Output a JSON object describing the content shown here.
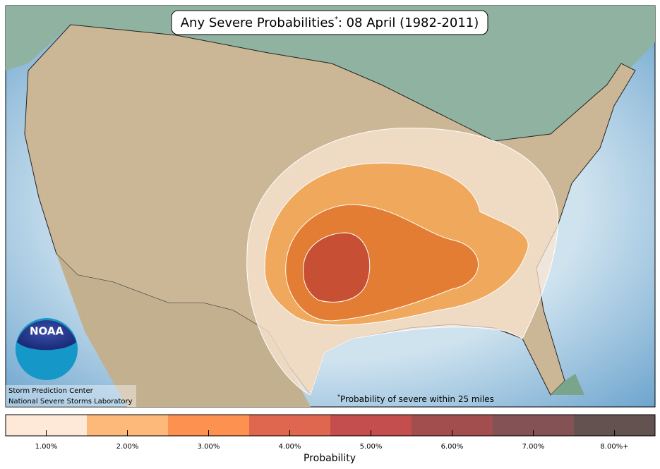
{
  "map": {
    "title": {
      "main": "Any Severe Probabilities",
      "mark": "*",
      "rest": ": 08 April (1982-2011)"
    },
    "footnote": {
      "mark": "*",
      "text": "Probability of severe within 25 miles"
    },
    "logo": "NOAA",
    "credits": [
      "Storm Prediction Center",
      "National Severe Storms Laboratory"
    ]
  },
  "legend": {
    "title": "Probability",
    "items": [
      {
        "label": "1.00%",
        "color": "#fee9d8"
      },
      {
        "label": "2.00%",
        "color": "#fdb97a"
      },
      {
        "label": "3.00%",
        "color": "#fd914f"
      },
      {
        "label": "4.00%",
        "color": "#e0674f"
      },
      {
        "label": "5.00%",
        "color": "#c44d4d"
      },
      {
        "label": "6.00%",
        "color": "#a24e4e"
      },
      {
        "label": "7.00%",
        "color": "#845254"
      },
      {
        "label": "8.00%+",
        "color": "#645250"
      }
    ]
  }
}
